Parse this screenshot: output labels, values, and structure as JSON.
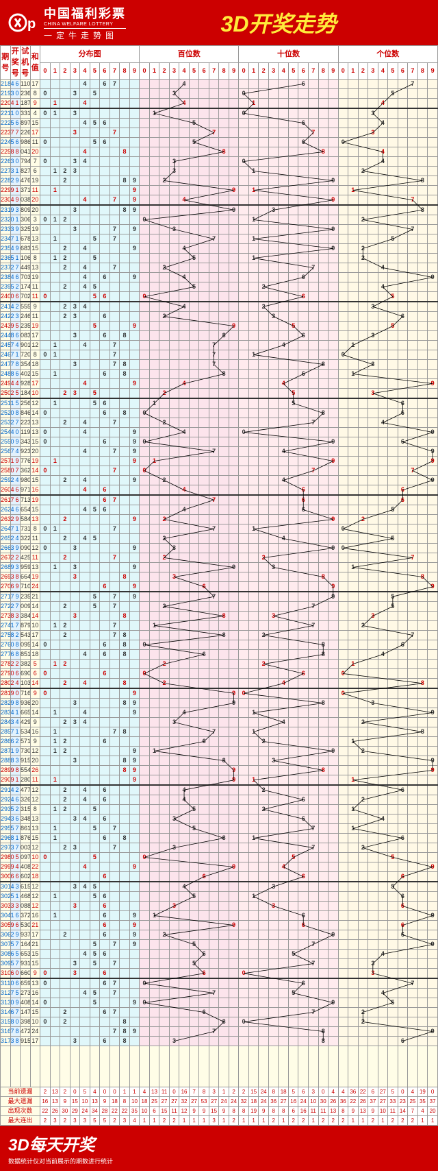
{
  "header": {
    "brand_cn": "中国福利彩票",
    "brand_en": "CHINA WELFARE LOTTERY",
    "brand_sub": "一定牛走势图",
    "title": "3D开奖走势"
  },
  "columns": {
    "period": "期号",
    "draw": "开奖号",
    "test": "试机号",
    "sum": "和值",
    "dist": "分布图",
    "hundreds": "百位数",
    "tens": "十位数",
    "ones": "个位数",
    "digits": [
      "0",
      "1",
      "2",
      "3",
      "4",
      "5",
      "6",
      "7",
      "8",
      "9"
    ]
  },
  "rows": [
    {
      "p": "218",
      "n": "467",
      "t": "110",
      "s": 17,
      "h": 0
    },
    {
      "p": "219",
      "n": "305",
      "t": "236",
      "s": 8,
      "h": 0
    },
    {
      "p": "220",
      "n": "414",
      "t": "187",
      "s": 9,
      "h": 1
    },
    {
      "p": "221",
      "n": "103",
      "t": "331",
      "s": 4,
      "h": 0,
      "g": 1
    },
    {
      "p": "222",
      "n": "564",
      "t": "897",
      "s": 15,
      "h": 0
    },
    {
      "p": "223",
      "n": "773",
      "t": "226",
      "s": 17,
      "h": 1
    },
    {
      "p": "224",
      "n": "560",
      "t": "986",
      "s": 11,
      "h": 0
    },
    {
      "p": "225",
      "n": "884",
      "t": "041",
      "s": 20,
      "h": 1
    },
    {
      "p": "226",
      "n": "304",
      "t": "794",
      "s": 7,
      "h": 0
    },
    {
      "p": "227",
      "n": "312",
      "t": "827",
      "s": 6,
      "h": 0
    },
    {
      "p": "228",
      "n": "298",
      "t": "476",
      "s": 19,
      "h": 0
    },
    {
      "p": "229",
      "n": "911",
      "t": "371",
      "s": 11,
      "h": 1
    },
    {
      "p": "230",
      "n": "497",
      "t": "038",
      "s": 20,
      "h": 1
    },
    {
      "p": "231",
      "n": "938",
      "t": "809",
      "s": 20,
      "h": 0,
      "g": 1
    },
    {
      "p": "232",
      "n": "012",
      "t": "306",
      "s": 3,
      "h": 0
    },
    {
      "p": "233",
      "n": "397",
      "t": "325",
      "s": 19,
      "h": 0
    },
    {
      "p": "234",
      "n": "715",
      "t": "678",
      "s": 13,
      "h": 0
    },
    {
      "p": "235",
      "n": "492",
      "t": "683",
      "s": 15,
      "h": 0
    },
    {
      "p": "236",
      "n": "512",
      "t": "106",
      "s": 8,
      "h": 0
    },
    {
      "p": "237",
      "n": "274",
      "t": "449",
      "s": 13,
      "h": 0
    },
    {
      "p": "238",
      "n": "469",
      "t": "703",
      "s": 19,
      "h": 0
    },
    {
      "p": "239",
      "n": "524",
      "t": "174",
      "s": 11,
      "h": 0
    },
    {
      "p": "240",
      "n": "065",
      "t": "702",
      "s": 11,
      "h": 1
    },
    {
      "p": "241",
      "n": "423",
      "t": "555",
      "s": 9,
      "h": 0,
      "g": 1
    },
    {
      "p": "242",
      "n": "236",
      "t": "246",
      "s": 11,
      "h": 0
    },
    {
      "p": "243",
      "n": "955",
      "t": "235",
      "s": 19,
      "h": 1
    },
    {
      "p": "244",
      "n": "863",
      "t": "083",
      "s": 17,
      "h": 0
    },
    {
      "p": "245",
      "n": "741",
      "t": "901",
      "s": 12,
      "h": 0
    },
    {
      "p": "246",
      "n": "710",
      "t": "720",
      "s": 8,
      "h": 0
    },
    {
      "p": "247",
      "n": "783",
      "t": "354",
      "s": 18,
      "h": 0
    },
    {
      "p": "248",
      "n": "861",
      "t": "402",
      "s": 15,
      "h": 0
    },
    {
      "p": "249",
      "n": "449",
      "t": "928",
      "s": 17,
      "h": 1
    },
    {
      "p": "250",
      "n": "253",
      "t": "184",
      "s": 10,
      "h": 1
    },
    {
      "p": "251",
      "n": "156",
      "t": "256",
      "s": 12,
      "h": 0,
      "g": 1
    },
    {
      "p": "252",
      "n": "086",
      "t": "846",
      "s": 14,
      "h": 0
    },
    {
      "p": "253",
      "n": "274",
      "t": "223",
      "s": 13,
      "h": 0
    },
    {
      "p": "254",
      "n": "409",
      "t": "119",
      "s": 13,
      "h": 0
    },
    {
      "p": "255",
      "n": "096",
      "t": "343",
      "s": 15,
      "h": 0
    },
    {
      "p": "256",
      "n": "749",
      "t": "923",
      "s": 20,
      "h": 0
    },
    {
      "p": "257",
      "n": "199",
      "t": "776",
      "s": 19,
      "h": 1
    },
    {
      "p": "258",
      "n": "077",
      "t": "362",
      "s": 14,
      "h": 1
    },
    {
      "p": "259",
      "n": "249",
      "t": "980",
      "s": 15,
      "h": 0
    },
    {
      "p": "260",
      "n": "466",
      "t": "971",
      "s": 16,
      "h": 1
    },
    {
      "p": "261",
      "n": "766",
      "t": "713",
      "s": 19,
      "h": 1,
      "g": 1
    },
    {
      "p": "262",
      "n": "465",
      "t": "654",
      "s": 15,
      "h": 0
    },
    {
      "p": "263",
      "n": "292",
      "t": "584",
      "s": 13,
      "h": 1
    },
    {
      "p": "264",
      "n": "710",
      "t": "731",
      "s": 8,
      "h": 0
    },
    {
      "p": "265",
      "n": "245",
      "t": "322",
      "s": 11,
      "h": 0
    },
    {
      "p": "266",
      "n": "390",
      "t": "090",
      "s": 12,
      "h": 0
    },
    {
      "p": "267",
      "n": "227",
      "t": "425",
      "s": 11,
      "h": 1
    },
    {
      "p": "268",
      "n": "931",
      "t": "959",
      "s": 13,
      "h": 0
    },
    {
      "p": "269",
      "n": "388",
      "t": "664",
      "s": 19,
      "h": 1
    },
    {
      "p": "270",
      "n": "699",
      "t": "710",
      "s": 24,
      "h": 1
    },
    {
      "p": "271",
      "n": "795",
      "t": "235",
      "s": 21,
      "h": 0,
      "g": 1
    },
    {
      "p": "272",
      "n": "275",
      "t": "009",
      "s": 14,
      "h": 0
    },
    {
      "p": "273",
      "n": "833",
      "t": "384",
      "s": 14,
      "h": 1
    },
    {
      "p": "274",
      "n": "172",
      "t": "879",
      "s": 10,
      "h": 0
    },
    {
      "p": "275",
      "n": "827",
      "t": "543",
      "s": 17,
      "h": 0
    },
    {
      "p": "276",
      "n": "086",
      "t": "095",
      "s": 14,
      "h": 0
    },
    {
      "p": "277",
      "n": "684",
      "t": "851",
      "s": 18,
      "h": 0
    },
    {
      "p": "278",
      "n": "221",
      "t": "382",
      "s": 5,
      "h": 1
    },
    {
      "p": "279",
      "n": "060",
      "t": "690",
      "s": 6,
      "h": 1
    },
    {
      "p": "280",
      "n": "248",
      "t": "103",
      "s": 14,
      "h": 1
    },
    {
      "p": "281",
      "n": "900",
      "t": "716",
      "s": 9,
      "h": 1,
      "g": 1
    },
    {
      "p": "282",
      "n": "983",
      "t": "936",
      "s": 20,
      "h": 0
    },
    {
      "p": "283",
      "n": "419",
      "t": "665",
      "s": 14,
      "h": 0
    },
    {
      "p": "284",
      "n": "342",
      "t": "429",
      "s": 9,
      "h": 0
    },
    {
      "p": "285",
      "n": "718",
      "t": "534",
      "s": 16,
      "h": 0
    },
    {
      "p": "286",
      "n": "621",
      "t": "571",
      "s": 9,
      "h": 0
    },
    {
      "p": "287",
      "n": "192",
      "t": "730",
      "s": 12,
      "h": 0
    },
    {
      "p": "288",
      "n": "839",
      "t": "915",
      "s": 20,
      "h": 0
    },
    {
      "p": "289",
      "n": "989",
      "t": "554",
      "s": 26,
      "h": 1
    },
    {
      "p": "290",
      "n": "911",
      "t": "280",
      "s": 11,
      "h": 1
    },
    {
      "p": "291",
      "n": "426",
      "t": "477",
      "s": 12,
      "h": 0,
      "g": 1
    },
    {
      "p": "292",
      "n": "462",
      "t": "326",
      "s": 12,
      "h": 0
    },
    {
      "p": "293",
      "n": "521",
      "t": "315",
      "s": 8,
      "h": 0
    },
    {
      "p": "294",
      "n": "364",
      "t": "348",
      "s": 13,
      "h": 0
    },
    {
      "p": "295",
      "n": "571",
      "t": "861",
      "s": 13,
      "h": 0
    },
    {
      "p": "296",
      "n": "816",
      "t": "876",
      "s": 15,
      "h": 0
    },
    {
      "p": "297",
      "n": "372",
      "t": "003",
      "s": 12,
      "h": 0
    },
    {
      "p": "298",
      "n": "055",
      "t": "097",
      "s": 10,
      "h": 1
    },
    {
      "p": "299",
      "n": "949",
      "t": "408",
      "s": 22,
      "h": 1
    },
    {
      "p": "300",
      "n": "666",
      "t": "602",
      "s": 18,
      "h": 1
    },
    {
      "p": "301",
      "n": "435",
      "t": "615",
      "s": 12,
      "h": 0,
      "g": 1
    },
    {
      "p": "302",
      "n": "516",
      "t": "468",
      "s": 12,
      "h": 0
    },
    {
      "p": "303",
      "n": "336",
      "t": "088",
      "s": 12,
      "h": 1
    },
    {
      "p": "304",
      "n": "169",
      "t": "372",
      "s": 16,
      "h": 0
    },
    {
      "p": "305",
      "n": "966",
      "t": "530",
      "s": 21,
      "h": 1
    },
    {
      "p": "306",
      "n": "296",
      "t": "937",
      "s": 17,
      "h": 0
    },
    {
      "p": "307",
      "n": "579",
      "t": "164",
      "s": 21,
      "h": 0
    },
    {
      "p": "308",
      "n": "654",
      "t": "653",
      "s": 15,
      "h": 0
    },
    {
      "p": "309",
      "n": "573",
      "t": "931",
      "s": 15,
      "h": 0
    },
    {
      "p": "310",
      "n": "603",
      "t": "660",
      "s": 9,
      "h": 1
    },
    {
      "p": "311",
      "n": "067",
      "t": "659",
      "s": 13,
      "h": 0,
      "g": 1
    },
    {
      "p": "312",
      "n": "754",
      "t": "273",
      "s": 16,
      "h": 0
    },
    {
      "p": "313",
      "n": "095",
      "t": "408",
      "s": 14,
      "h": 0
    },
    {
      "p": "314",
      "n": "672",
      "t": "147",
      "s": 15,
      "h": 0
    },
    {
      "p": "315",
      "n": "802",
      "t": "398",
      "s": 10,
      "h": 0
    },
    {
      "p": "316",
      "n": "789",
      "t": "472",
      "s": 24,
      "h": 0
    },
    {
      "p": "317",
      "n": "386",
      "t": "915",
      "s": 17,
      "h": 0
    }
  ],
  "stats": {
    "labels": [
      "当前遗漏",
      "最大遗漏",
      "出现次数",
      "最大连出"
    ],
    "dist": [
      [
        2,
        13,
        2,
        0,
        5,
        4,
        0,
        0,
        1,
        1
      ],
      [
        16,
        13,
        9,
        15,
        10,
        13,
        9,
        18,
        8,
        10
      ],
      [
        22,
        26,
        30,
        29,
        24,
        34,
        28,
        22,
        22,
        35
      ],
      [
        2,
        3,
        2,
        3,
        3,
        5,
        5,
        2,
        3,
        4
      ]
    ],
    "hundreds": [
      [
        4,
        13,
        11,
        0,
        16,
        7,
        8,
        3,
        1,
        2
      ],
      [
        18,
        25,
        27,
        27,
        32,
        27,
        53,
        27,
        24,
        24
      ],
      [
        10,
        6,
        15,
        11,
        12,
        9,
        9,
        15,
        9,
        8
      ],
      [
        1,
        1,
        2,
        2,
        1,
        1,
        1,
        3,
        1,
        2
      ]
    ],
    "tens": [
      [
        2,
        15,
        24,
        8,
        18,
        5,
        6,
        3,
        0,
        4
      ],
      [
        32,
        18,
        24,
        36,
        27,
        16,
        24,
        10,
        30,
        26
      ],
      [
        8,
        19,
        9,
        8,
        8,
        6,
        16,
        11,
        11,
        13
      ],
      [
        1,
        1,
        1,
        2,
        1,
        2,
        2,
        1,
        2,
        2
      ]
    ],
    "ones": [
      [
        4,
        36,
        22,
        6,
        27,
        5,
        0,
        4,
        19,
        0
      ],
      [
        36,
        22,
        26,
        37,
        27,
        33,
        23,
        25,
        35,
        37
      ],
      [
        8,
        9,
        13,
        9,
        10,
        11,
        14,
        7,
        4,
        20
      ],
      [
        2,
        1,
        1,
        2,
        1,
        2,
        2,
        2,
        1,
        1
      ]
    ]
  },
  "footer": {
    "big": "3D每天开奖",
    "small": "数据统计仅对当前展示的期数进行统计"
  },
  "colors": {
    "header_bg": "#c00",
    "header_title": "#ffeb3b",
    "dist_bg": "#e0f7fa",
    "hun_bg": "#fce4ec",
    "ten_bg": "#ffebee",
    "one_bg": "#fff9e6",
    "line": "#000",
    "mark": "#c00"
  }
}
